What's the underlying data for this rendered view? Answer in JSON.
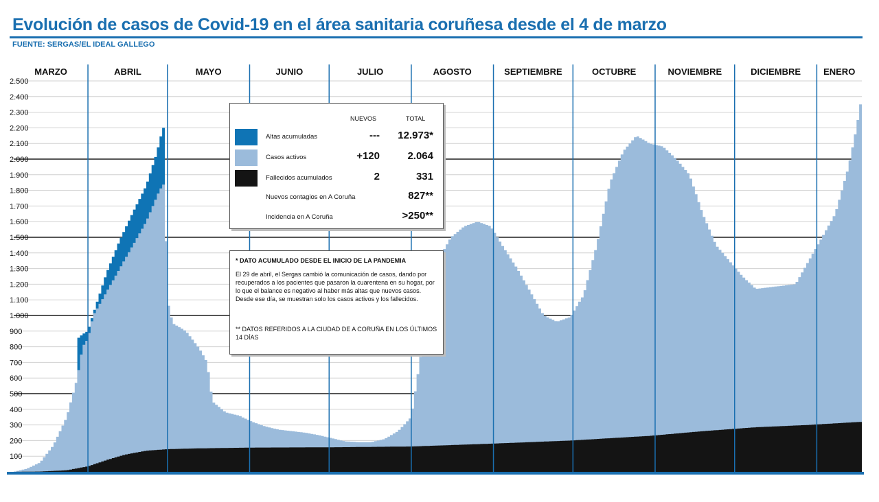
{
  "header": {
    "title": "Evolución de casos de Covid-19 en el área sanitaria coruñesa desde el 4 de marzo",
    "source": "FUENTE: SERGAS/EL IDEAL GALLEGO"
  },
  "colors": {
    "accent": "#1a6fb0",
    "altas": "#0f74b5",
    "activos": "#9bbbdb",
    "fallecidos": "#141414",
    "month_line": "#1a6fb0",
    "grid": "#d0d0d0",
    "grid_major": "#555555"
  },
  "chart_data": {
    "type": "area",
    "x_unit": "days since 4 March (2020-03-04 = day 0)",
    "x_range": [
      0,
      320
    ],
    "ylim": [
      0,
      2500
    ],
    "y_ticks": [
      100,
      200,
      300,
      400,
      500,
      600,
      700,
      800,
      900,
      1000,
      1100,
      1200,
      1300,
      1400,
      1500,
      1600,
      1700,
      1800,
      1900,
      2000,
      2100,
      2200,
      2300,
      2400,
      2500
    ],
    "y_tick_labels": [
      "100",
      "200",
      "300",
      "400",
      "500",
      "600",
      "700",
      "800",
      "900",
      "1.000",
      "1.100",
      "1.200",
      "1.300",
      "1.400",
      "1.500",
      "1.600",
      "1.700",
      "1.800",
      "1.900",
      "2.000",
      "2.100",
      "2.200",
      "2.300",
      "2.400",
      "2.500"
    ],
    "major_gridlines": [
      500,
      1000,
      1500,
      2000
    ],
    "months": [
      {
        "label": "MARZO",
        "start": -3
      },
      {
        "label": "ABRIL",
        "start": 28
      },
      {
        "label": "MAYO",
        "start": 58
      },
      {
        "label": "JUNIO",
        "start": 89
      },
      {
        "label": "JULIO",
        "start": 119
      },
      {
        "label": "AGOSTO",
        "start": 150
      },
      {
        "label": "SEPTIEMBRE",
        "start": 181
      },
      {
        "label": "OCTUBRE",
        "start": 211
      },
      {
        "label": "NOVIEMBRE",
        "start": 242
      },
      {
        "label": "DICIEMBRE",
        "start": 272
      },
      {
        "label": "ENERO",
        "start": 303
      }
    ],
    "series": [
      {
        "name": "Fallecidos acumulados",
        "x": [
          0,
          10,
          20,
          28,
          35,
          42,
          50,
          58,
          70,
          90,
          120,
          150,
          180,
          210,
          240,
          260,
          280,
          300,
          310,
          320
        ],
        "values": [
          0,
          2,
          10,
          35,
          75,
          110,
          135,
          145,
          150,
          155,
          157,
          162,
          180,
          200,
          230,
          260,
          285,
          300,
          310,
          320
        ]
      },
      {
        "name": "Casos activos (total activos + fallecidos)",
        "x": [
          0,
          5,
          10,
          15,
          20,
          24,
          26,
          28,
          30,
          35,
          40,
          45,
          50,
          55,
          57,
          58,
          60,
          65,
          70,
          73,
          75,
          80,
          85,
          90,
          95,
          100,
          105,
          110,
          115,
          120,
          125,
          130,
          135,
          140,
          145,
          150,
          155,
          160,
          165,
          170,
          175,
          180,
          185,
          190,
          195,
          200,
          205,
          210,
          215,
          220,
          225,
          230,
          235,
          240,
          245,
          250,
          255,
          260,
          265,
          270,
          275,
          280,
          285,
          290,
          295,
          300,
          305,
          310,
          315,
          318,
          320
        ],
        "values": [
          0,
          20,
          60,
          170,
          350,
          600,
          800,
          850,
          1000,
          1150,
          1300,
          1450,
          1600,
          1800,
          1850,
          1100,
          950,
          900,
          790,
          700,
          450,
          380,
          360,
          320,
          290,
          270,
          260,
          250,
          235,
          215,
          195,
          190,
          190,
          210,
          260,
          350,
          900,
          1350,
          1500,
          1570,
          1600,
          1570,
          1430,
          1300,
          1150,
          1000,
          960,
          990,
          1130,
          1450,
          1850,
          2050,
          2150,
          2100,
          2080,
          2000,
          1900,
          1650,
          1450,
          1350,
          1250,
          1170,
          1180,
          1190,
          1200,
          1350,
          1500,
          1650,
          1950,
          2200,
          2400
        ]
      },
      {
        "name": "Altas acumuladas (stacked top, until 29 April)",
        "x": [
          24,
          26,
          28,
          30,
          35,
          40,
          45,
          50,
          54,
          56,
          57
        ],
        "values": [
          850,
          880,
          900,
          1010,
          1270,
          1480,
          1660,
          1830,
          2040,
          2180,
          2220
        ]
      }
    ],
    "legend": {
      "col_new": "NUEVOS",
      "col_total": "TOTAL",
      "rows": [
        {
          "label": "Altas acumuladas",
          "nuevos": "---",
          "total": "12.973*",
          "swatch": "altas"
        },
        {
          "label": "Casos activos",
          "nuevos": "+120",
          "total": "2.064",
          "swatch": "activos"
        },
        {
          "label": "Fallecidos acumulados",
          "nuevos": "2",
          "total": "331",
          "swatch": "fallecidos"
        },
        {
          "label": "Nuevos contagios en A Coruña",
          "nuevos": "",
          "total": "827**",
          "swatch": ""
        },
        {
          "label": "Incidencia en A Coruña",
          "nuevos": "",
          "total": ">250**",
          "swatch": ""
        }
      ]
    },
    "notes": {
      "title": "* DATO ACUMULADO DESDE EL INICIO DE LA PANDEMIA",
      "body": "El 29 de abril, el Sergas cambió la comunicación de casos, dando por recuperados a los pacientes que pasaron la cuarentena en su hogar, por lo que el balance es negativo al haber más altas que nuevos casos. Desde ese día, se muestran solo los casos activos y los fallecidos.",
      "footnote": "** DATOS REFERIDOS A LA CIUDAD DE A CORUÑA EN LOS ÚLTIMOS 14 DÍAS"
    }
  }
}
